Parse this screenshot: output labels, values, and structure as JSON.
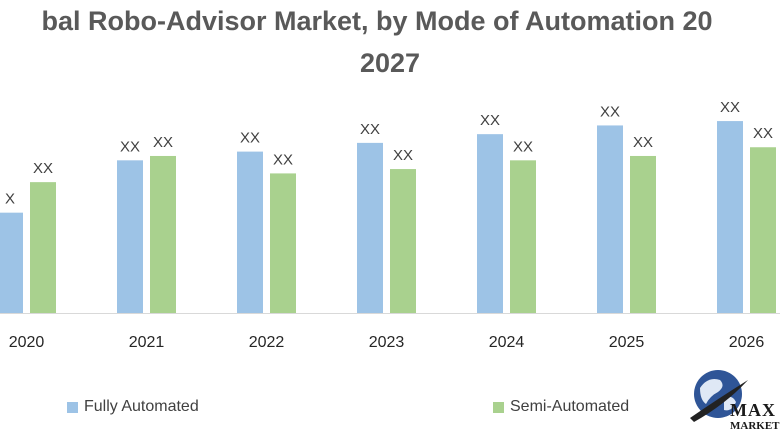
{
  "title_line1": "bal Robo-Advisor Market, by Mode of Automation 20",
  "title_line2": "2027",
  "chart_data": {
    "type": "bar",
    "categories": [
      "2020",
      "2021",
      "2022",
      "2023",
      "2024",
      "2025",
      "2026"
    ],
    "series": [
      {
        "name": "Fully Automated",
        "color": "#9dc3e6",
        "values": [
          23,
          35,
          37,
          39,
          41,
          43,
          44
        ],
        "labels": [
          "X",
          "XX",
          "XX",
          "XX",
          "XX",
          "XX",
          "XX"
        ]
      },
      {
        "name": "Semi-Automated",
        "color": "#a9d18e",
        "values": [
          30,
          36,
          32,
          33,
          35,
          36,
          38
        ],
        "labels": [
          "XX",
          "XX",
          "XX",
          "XX",
          "XX",
          "XX",
          "XX"
        ]
      }
    ],
    "xlabel": "",
    "ylabel": "",
    "ylim": [
      0,
      58
    ],
    "grid": false,
    "legend": "bottom"
  },
  "legend": {
    "item1": "Fully Automated",
    "item2": "Semi-Automated"
  },
  "logo": {
    "text1": "MAX",
    "text2": "MARKET"
  }
}
